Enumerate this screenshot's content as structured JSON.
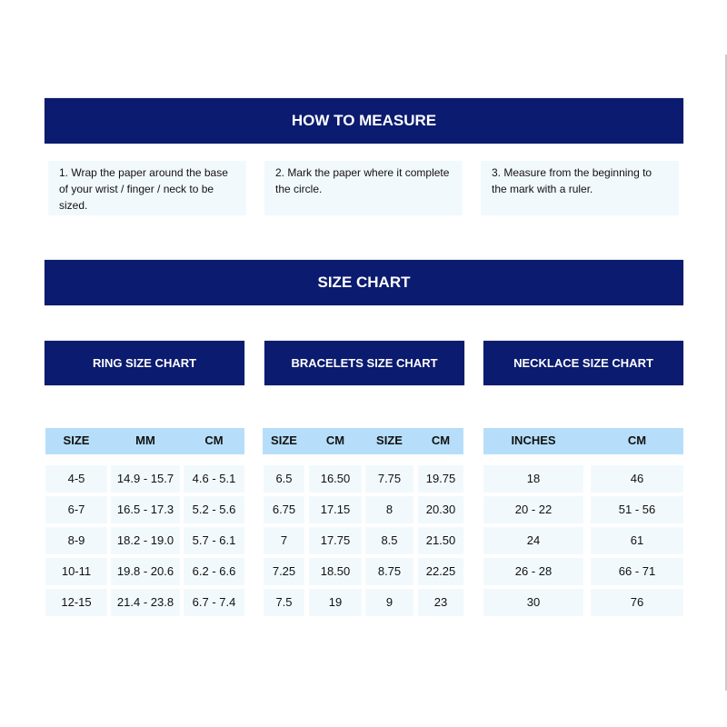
{
  "how_to_measure": {
    "title": "HOW TO MEASURE",
    "steps": [
      "1. Wrap the paper around the base of your wrist / finger / neck to be sized.",
      "2. Mark the paper where it complete the circle.",
      "3. Measure from the beginning to the mark with a ruler."
    ]
  },
  "size_chart": {
    "title": "SIZE CHART",
    "ring": {
      "title": "RING SIZE CHART",
      "headers": [
        "SIZE",
        "MM",
        "CM"
      ],
      "rows": [
        [
          "4-5",
          "14.9 - 15.7",
          "4.6 - 5.1"
        ],
        [
          "6-7",
          "16.5 - 17.3",
          "5.2 - 5.6"
        ],
        [
          "8-9",
          "18.2 - 19.0",
          "5.7 - 6.1"
        ],
        [
          "10-11",
          "19.8 - 20.6",
          "6.2 - 6.6"
        ],
        [
          "12-15",
          "21.4 - 23.8",
          "6.7 - 7.4"
        ]
      ]
    },
    "bracelet": {
      "title": "BRACELETS SIZE CHART",
      "headers": [
        "SIZE",
        "CM",
        "SIZE",
        "CM"
      ],
      "rows": [
        [
          "6.5",
          "16.50",
          "7.75",
          "19.75"
        ],
        [
          "6.75",
          "17.15",
          "8",
          "20.30"
        ],
        [
          "7",
          "17.75",
          "8.5",
          "21.50"
        ],
        [
          "7.25",
          "18.50",
          "8.75",
          "22.25"
        ],
        [
          "7.5",
          "19",
          "9",
          "23"
        ]
      ]
    },
    "necklace": {
      "title": "NECKLACE SIZE CHART",
      "headers": [
        "INCHES",
        "CM"
      ],
      "rows": [
        [
          "18",
          "46"
        ],
        [
          "20 - 22",
          "51 - 56"
        ],
        [
          "24",
          "61"
        ],
        [
          "26 - 28",
          "66 - 71"
        ],
        [
          "30",
          "76"
        ]
      ]
    }
  },
  "colors": {
    "navy": "#0b1b6f",
    "header_blue": "#b6defa",
    "cell_bg": "#f2f9fd"
  }
}
